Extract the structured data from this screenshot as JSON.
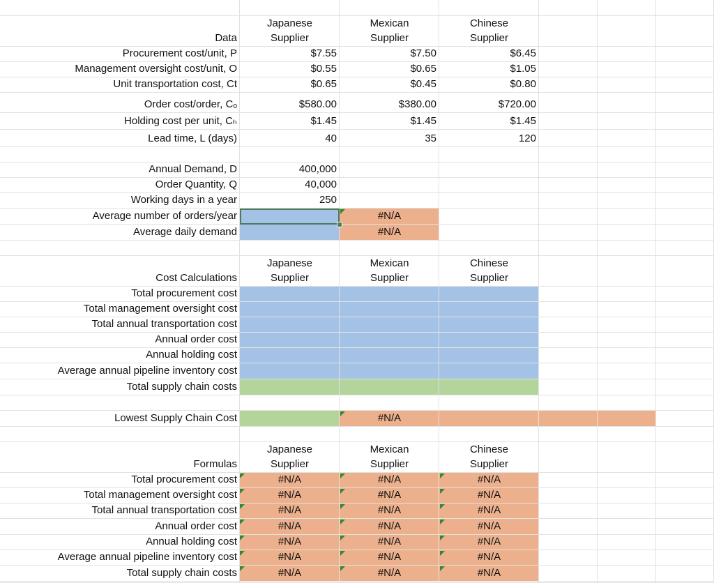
{
  "data_table": {
    "label": "Data",
    "suppliers": [
      "Japanese Supplier",
      "Mexican Supplier",
      "Chinese Supplier"
    ],
    "rows": [
      {
        "label": "Procurement cost/unit, P",
        "values": [
          "$7.55",
          "$7.50",
          "$6.45"
        ]
      },
      {
        "label": "Management oversight cost/unit, O",
        "values": [
          "$0.55",
          "$0.65",
          "$1.05"
        ]
      },
      {
        "label": "Unit transportation cost, Ct",
        "values": [
          "$0.65",
          "$0.45",
          "$0.80"
        ]
      },
      {
        "label": "Order cost/order, Cₒ",
        "values": [
          "$580.00",
          "$380.00",
          "$720.00"
        ]
      },
      {
        "label": "Holding cost per unit, Cₕ",
        "values": [
          "$1.45",
          "$1.45",
          "$1.45"
        ]
      },
      {
        "label": "Lead time, L (days)",
        "values": [
          "40",
          "35",
          "120"
        ]
      }
    ]
  },
  "demand_table": {
    "rows": [
      {
        "label": "Annual Demand, D",
        "value": "400,000"
      },
      {
        "label": "Order Quantity, Q",
        "value": "40,000"
      },
      {
        "label": "Working days in a year",
        "value": "250"
      },
      {
        "label": "Average number of orders/year",
        "result": "#N/A"
      },
      {
        "label": "Average daily demand",
        "result": "#N/A"
      }
    ]
  },
  "cost_table": {
    "label": "Cost Calculations",
    "suppliers": [
      "Japanese Supplier",
      "Mexican Supplier",
      "Chinese Supplier"
    ],
    "rows": [
      "Total procurement cost",
      "Total management oversight cost",
      "Total annual transportation cost",
      "Annual order cost",
      "Annual holding cost",
      "Average annual pipeline inventory cost",
      "Total supply chain costs"
    ]
  },
  "lowest": {
    "label": "Lowest Supply Chain Cost",
    "result": "#N/A"
  },
  "formulas_table": {
    "label": "Formulas",
    "suppliers": [
      "Japanese Supplier",
      "Mexican Supplier",
      "Chinese Supplier"
    ],
    "rows": [
      {
        "label": "Total procurement cost",
        "values": [
          "#N/A",
          "#N/A",
          "#N/A"
        ]
      },
      {
        "label": "Total management oversight cost",
        "values": [
          "#N/A",
          "#N/A",
          "#N/A"
        ]
      },
      {
        "label": "Total annual transportation cost",
        "values": [
          "#N/A",
          "#N/A",
          "#N/A"
        ]
      },
      {
        "label": "Annual order cost",
        "values": [
          "#N/A",
          "#N/A",
          "#N/A"
        ]
      },
      {
        "label": "Annual holding cost",
        "values": [
          "#N/A",
          "#N/A",
          "#N/A"
        ]
      },
      {
        "label": "Average annual pipeline inventory cost",
        "values": [
          "#N/A",
          "#N/A",
          "#N/A"
        ]
      },
      {
        "label": "Total supply chain costs",
        "values": [
          "#N/A",
          "#N/A",
          "#N/A"
        ]
      }
    ]
  }
}
